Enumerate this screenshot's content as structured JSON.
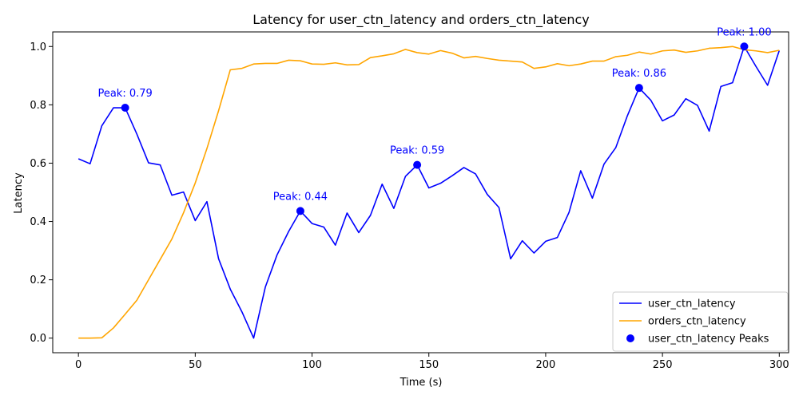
{
  "chart_data": {
    "type": "line",
    "title": "Latency for user_ctn_latency and orders_ctn_latency",
    "xlabel": "Time (s)",
    "ylabel": "Latency",
    "xlim": [
      -11,
      304
    ],
    "ylim": [
      -0.05,
      1.05
    ],
    "x_ticks": [
      0,
      50,
      100,
      150,
      200,
      250,
      300
    ],
    "y_ticks": [
      0.0,
      0.2,
      0.4,
      0.6,
      0.8,
      1.0
    ],
    "x_tick_labels": [
      "0",
      "50",
      "100",
      "150",
      "200",
      "250",
      "300"
    ],
    "y_tick_labels": [
      "0.0",
      "0.2",
      "0.4",
      "0.6",
      "0.8",
      "1.0"
    ],
    "grid": false,
    "legend_position": "lower-right",
    "x": [
      0,
      5,
      10,
      15,
      20,
      25,
      30,
      35,
      40,
      45,
      50,
      55,
      60,
      65,
      70,
      75,
      80,
      85,
      90,
      95,
      100,
      105,
      110,
      115,
      120,
      125,
      130,
      135,
      140,
      145,
      150,
      155,
      160,
      165,
      170,
      175,
      180,
      185,
      190,
      195,
      200,
      205,
      210,
      215,
      220,
      225,
      230,
      235,
      240,
      245,
      250,
      255,
      260,
      265,
      270,
      275,
      280,
      285,
      290,
      295,
      300
    ],
    "series": [
      {
        "name": "user_ctn_latency",
        "color": "#0000ff",
        "values": [
          0.615,
          0.598,
          0.728,
          0.79,
          0.79,
          0.7,
          0.601,
          0.594,
          0.49,
          0.501,
          0.403,
          0.468,
          0.272,
          0.168,
          0.09,
          0.0,
          0.175,
          0.285,
          0.366,
          0.436,
          0.393,
          0.381,
          0.319,
          0.429,
          0.362,
          0.421,
          0.528,
          0.445,
          0.555,
          0.594,
          0.515,
          0.531,
          0.557,
          0.585,
          0.563,
          0.493,
          0.448,
          0.272,
          0.334,
          0.292,
          0.332,
          0.345,
          0.431,
          0.574,
          0.48,
          0.597,
          0.653,
          0.763,
          0.858,
          0.816,
          0.745,
          0.765,
          0.821,
          0.798,
          0.71,
          0.863,
          0.876,
          1.0,
          0.932,
          0.867,
          0.986
        ]
      },
      {
        "name": "orders_ctn_latency",
        "color": "#ffa500",
        "values": [
          0.0,
          0.0,
          0.001,
          0.035,
          0.082,
          0.13,
          0.2,
          0.27,
          0.34,
          0.43,
          0.532,
          0.65,
          0.78,
          0.92,
          0.925,
          0.94,
          0.942,
          0.942,
          0.953,
          0.951,
          0.94,
          0.939,
          0.944,
          0.937,
          0.938,
          0.962,
          0.968,
          0.975,
          0.99,
          0.979,
          0.974,
          0.986,
          0.977,
          0.961,
          0.966,
          0.959,
          0.953,
          0.95,
          0.947,
          0.925,
          0.93,
          0.941,
          0.934,
          0.94,
          0.95,
          0.95,
          0.965,
          0.97,
          0.981,
          0.974,
          0.985,
          0.988,
          0.98,
          0.985,
          0.994,
          0.996,
          1.0,
          0.989,
          0.985,
          0.979,
          0.987
        ]
      }
    ],
    "peaks": {
      "name": "user_ctn_latency Peaks",
      "color": "#0000ff",
      "points": [
        {
          "x": 20,
          "y": 0.79,
          "label": "Peak: 0.79"
        },
        {
          "x": 95,
          "y": 0.436,
          "label": "Peak: 0.44"
        },
        {
          "x": 145,
          "y": 0.594,
          "label": "Peak: 0.59"
        },
        {
          "x": 240,
          "y": 0.858,
          "label": "Peak: 0.86"
        },
        {
          "x": 285,
          "y": 1.0,
          "label": "Peak: 1.00"
        }
      ]
    }
  }
}
